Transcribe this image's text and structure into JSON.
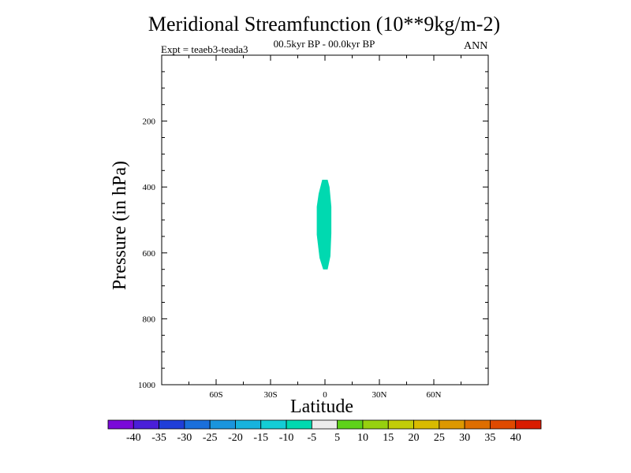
{
  "chart_data": {
    "type": "heatmap",
    "title": "Meridional Streamfunction (10**9kg/m-2)",
    "subtitle": "00.5kyr BP - 00.0kyr BP",
    "left_label": "Expt = teaeb3-teada3",
    "right_label": "ANN",
    "xlabel": "Latitude",
    "ylabel": "Pressure (in hPa)",
    "xlim": [
      -90,
      90
    ],
    "ylim": [
      0,
      1000
    ],
    "y_inverted": true,
    "x_ticks": [
      {
        "value": -60,
        "label": "60S"
      },
      {
        "value": -30,
        "label": "30S"
      },
      {
        "value": 0,
        "label": "0"
      },
      {
        "value": 30,
        "label": "30N"
      },
      {
        "value": 60,
        "label": "60N"
      }
    ],
    "y_ticks": [
      {
        "value": 200,
        "label": "200"
      },
      {
        "value": 400,
        "label": "400"
      },
      {
        "value": 600,
        "label": "600"
      },
      {
        "value": 800,
        "label": "800"
      },
      {
        "value": 1000,
        "label": "1000"
      }
    ],
    "filled_regions": [
      {
        "range": "-10 to -5",
        "color": "#00d9b0",
        "outline": [
          [
            -1.5,
            378
          ],
          [
            1.5,
            378
          ],
          [
            2.5,
            400
          ],
          [
            3.5,
            460
          ],
          [
            3.5,
            540
          ],
          [
            3.0,
            610
          ],
          [
            1.5,
            650
          ],
          [
            -1.0,
            650
          ],
          [
            -3.0,
            615
          ],
          [
            -4.5,
            545
          ],
          [
            -4.5,
            460
          ],
          [
            -3.5,
            420
          ]
        ]
      }
    ],
    "colorbar": {
      "labels": [
        "-40",
        "-35",
        "-30",
        "-25",
        "-20",
        "-15",
        "-10",
        "-5",
        "5",
        "10",
        "15",
        "20",
        "25",
        "30",
        "35",
        "40"
      ],
      "colors": [
        "#7a0ad9",
        "#4a1fd9",
        "#1f3ed9",
        "#1a6fdb",
        "#1a95dd",
        "#17b3dd",
        "#14cdd6",
        "#00d9b0",
        "#ececec",
        "#5ed21a",
        "#97d10f",
        "#c2cc08",
        "#d9bb00",
        "#dd9800",
        "#de6e00",
        "#df4a00",
        "#d91c00"
      ]
    }
  }
}
